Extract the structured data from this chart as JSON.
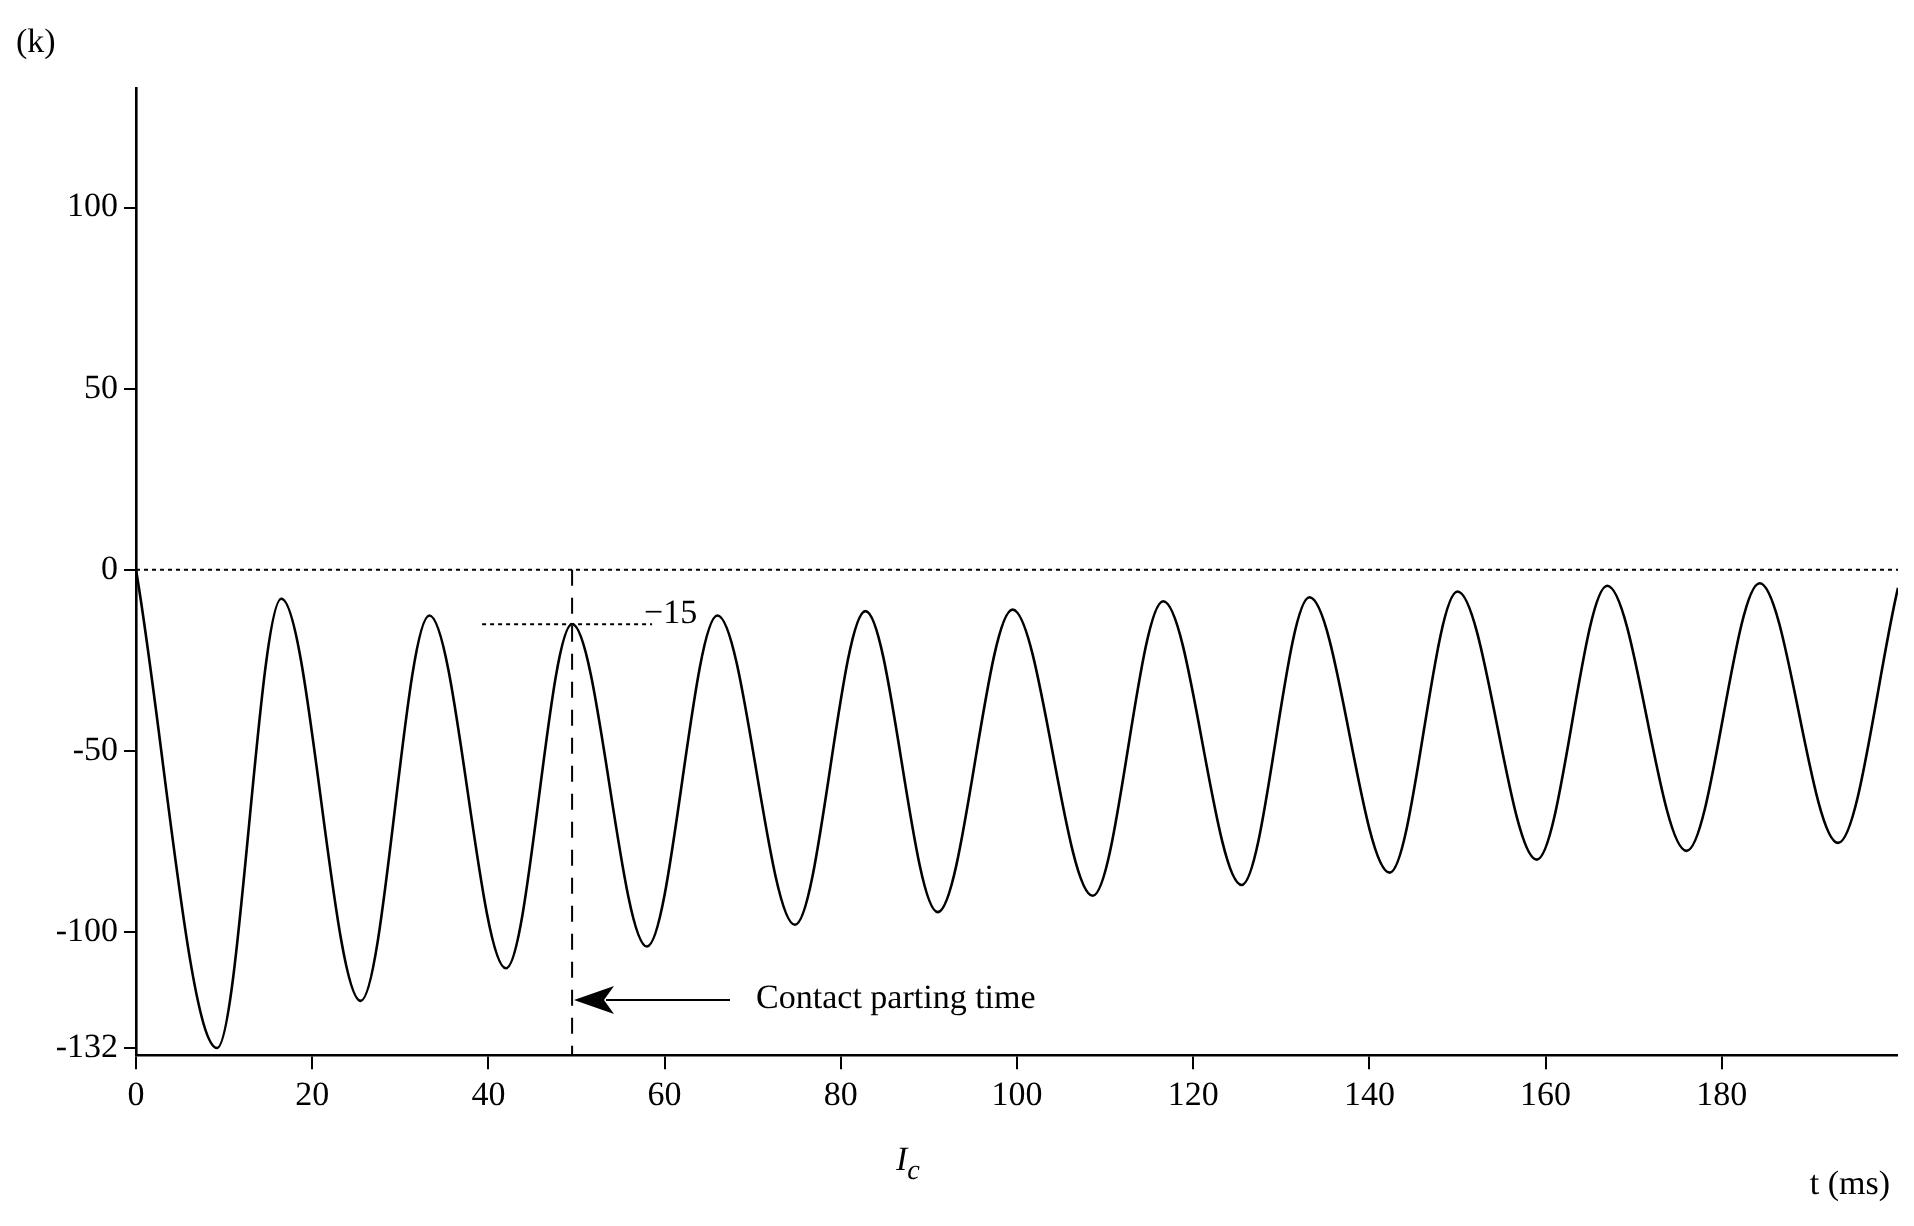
{
  "chart_data": {
    "type": "line",
    "ylabel": "(k)",
    "xlabel": "t (ms)",
    "xlim": [
      0,
      200
    ],
    "xticks": [
      0,
      20,
      40,
      60,
      80,
      100,
      120,
      140,
      160,
      180
    ],
    "ylim": [
      -134,
      133
    ],
    "yticks": [
      -132,
      -100,
      -50,
      0,
      50,
      100
    ],
    "grid": false,
    "legend": false,
    "marker": "none",
    "line_style": "solid",
    "series": [
      {
        "color": "#000000",
        "x": [
          0,
          9.2,
          16.5,
          25.5,
          33.3,
          42,
          49.5,
          58,
          66,
          74.8,
          82.8,
          91,
          99.5,
          108.6,
          116.6,
          125.5,
          133.2,
          142.3,
          150,
          159,
          167,
          176,
          184.3,
          193.2,
          200
        ],
        "values": [
          0,
          -132,
          -8,
          -119,
          -12.6,
          -110,
          -15,
          -104,
          -12.6,
          -98,
          -11.4,
          -94.5,
          -11,
          -90,
          -8.7,
          -87,
          -7.6,
          -83.6,
          -6,
          -80,
          -4.4,
          -77.6,
          -3.7,
          -75.4,
          -5
        ]
      }
    ],
    "ref_lines": [
      {
        "axis": "y",
        "value": 0,
        "line_style": "dotted",
        "color": "#000000"
      },
      {
        "axis": "x",
        "value": 49.5,
        "line_style": "dashed",
        "color": "#000000"
      }
    ],
    "annotations": [
      {
        "text": "−15",
        "x": 49.5,
        "y": -15
      },
      "Contact parting time",
      "I$_{c}$"
    ]
  }
}
